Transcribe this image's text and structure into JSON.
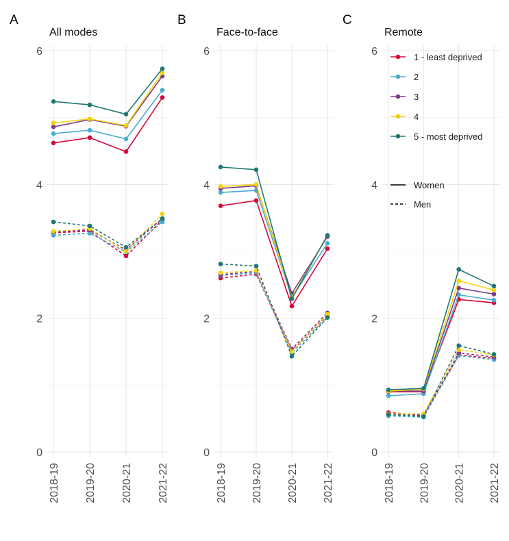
{
  "chart_data": [
    {
      "type": "line",
      "panel": "A",
      "title": "All modes",
      "categories": [
        "2018-19",
        "2019-20",
        "2020-21",
        "2021-22"
      ],
      "ylim": [
        0,
        6
      ],
      "yticks": [
        0,
        2,
        4,
        6
      ],
      "series": [
        {
          "name": "1 - least deprived",
          "linetype": "Women",
          "values": [
            4.62,
            4.7,
            4.49,
            5.3
          ]
        },
        {
          "name": "2",
          "linetype": "Women",
          "values": [
            4.76,
            4.81,
            4.68,
            5.41
          ]
        },
        {
          "name": "3",
          "linetype": "Women",
          "values": [
            4.86,
            4.97,
            4.87,
            5.62
          ]
        },
        {
          "name": "4",
          "linetype": "Women",
          "values": [
            4.92,
            4.98,
            4.88,
            5.67
          ]
        },
        {
          "name": "5 - most deprived",
          "linetype": "Women",
          "values": [
            5.24,
            5.19,
            5.05,
            5.73
          ]
        },
        {
          "name": "1 - least deprived",
          "linetype": "Men",
          "values": [
            3.28,
            3.3,
            2.93,
            3.47
          ]
        },
        {
          "name": "2",
          "linetype": "Men",
          "values": [
            3.24,
            3.27,
            2.99,
            3.44
          ]
        },
        {
          "name": "3",
          "linetype": "Men",
          "values": [
            3.29,
            3.32,
            3.02,
            3.49
          ]
        },
        {
          "name": "4",
          "linetype": "Men",
          "values": [
            3.3,
            3.34,
            3.0,
            3.56
          ]
        },
        {
          "name": "5 - most deprived",
          "linetype": "Men",
          "values": [
            3.44,
            3.38,
            3.06,
            3.49
          ]
        }
      ]
    },
    {
      "type": "line",
      "panel": "B",
      "title": "Face-to-face",
      "categories": [
        "2018-19",
        "2019-20",
        "2020-21",
        "2021-22"
      ],
      "ylim": [
        0,
        6
      ],
      "yticks": [
        0,
        2,
        4,
        6
      ],
      "series": [
        {
          "name": "1 - least deprived",
          "linetype": "Women",
          "values": [
            3.68,
            3.76,
            2.18,
            3.04
          ]
        },
        {
          "name": "2",
          "linetype": "Women",
          "values": [
            3.88,
            3.91,
            2.31,
            3.12
          ]
        },
        {
          "name": "3",
          "linetype": "Women",
          "values": [
            3.94,
            3.98,
            2.37,
            3.22
          ]
        },
        {
          "name": "4",
          "linetype": "Women",
          "values": [
            3.97,
            4.0,
            2.31,
            3.24
          ]
        },
        {
          "name": "5 - most deprived",
          "linetype": "Women",
          "values": [
            4.26,
            4.22,
            2.29,
            3.24
          ]
        },
        {
          "name": "1 - least deprived",
          "linetype": "Men",
          "values": [
            2.6,
            2.66,
            1.51,
            2.05
          ]
        },
        {
          "name": "2",
          "linetype": "Men",
          "values": [
            2.64,
            2.68,
            1.48,
            2.02
          ]
        },
        {
          "name": "3",
          "linetype": "Men",
          "values": [
            2.65,
            2.7,
            1.54,
            2.08
          ]
        },
        {
          "name": "4",
          "linetype": "Men",
          "values": [
            2.68,
            2.71,
            1.5,
            2.06
          ]
        },
        {
          "name": "5 - most deprived",
          "linetype": "Men",
          "values": [
            2.81,
            2.78,
            1.43,
            2.01
          ]
        }
      ]
    },
    {
      "type": "line",
      "panel": "C",
      "title": "Remote",
      "categories": [
        "2018-19",
        "2019-20",
        "2020-21",
        "2021-22"
      ],
      "ylim": [
        0,
        6
      ],
      "yticks": [
        0,
        2,
        4,
        6
      ],
      "series": [
        {
          "name": "1 - least deprived",
          "linetype": "Women",
          "values": [
            0.9,
            0.9,
            2.28,
            2.23
          ]
        },
        {
          "name": "2",
          "linetype": "Women",
          "values": [
            0.84,
            0.87,
            2.35,
            2.27
          ]
        },
        {
          "name": "3",
          "linetype": "Women",
          "values": [
            0.91,
            0.91,
            2.45,
            2.36
          ]
        },
        {
          "name": "4",
          "linetype": "Women",
          "values": [
            0.91,
            0.94,
            2.56,
            2.42
          ]
        },
        {
          "name": "5 - most deprived",
          "linetype": "Women",
          "values": [
            0.93,
            0.95,
            2.73,
            2.48
          ]
        },
        {
          "name": "1 - least deprived",
          "linetype": "Men",
          "values": [
            0.59,
            0.55,
            1.45,
            1.4
          ]
        },
        {
          "name": "2",
          "linetype": "Men",
          "values": [
            0.54,
            0.52,
            1.44,
            1.38
          ]
        },
        {
          "name": "3",
          "linetype": "Men",
          "values": [
            0.57,
            0.54,
            1.48,
            1.42
          ]
        },
        {
          "name": "4",
          "linetype": "Men",
          "values": [
            0.57,
            0.57,
            1.53,
            1.45
          ]
        },
        {
          "name": "5 - most deprived",
          "linetype": "Men",
          "values": [
            0.56,
            0.53,
            1.59,
            1.46
          ]
        }
      ]
    }
  ],
  "legend": {
    "placement": "top-right",
    "deprivation": [
      {
        "label": "1 - least deprived",
        "color": "#D7063A"
      },
      {
        "label": "2",
        "color": "#4AABCF"
      },
      {
        "label": "3",
        "color": "#7B3C8B"
      },
      {
        "label": "4",
        "color": "#F5D20C"
      },
      {
        "label": "5 - most deprived",
        "color": "#1F7872"
      }
    ],
    "linetypes": [
      {
        "label": "Women",
        "dash": "solid"
      },
      {
        "label": "Men",
        "dash": "dashed"
      }
    ]
  }
}
